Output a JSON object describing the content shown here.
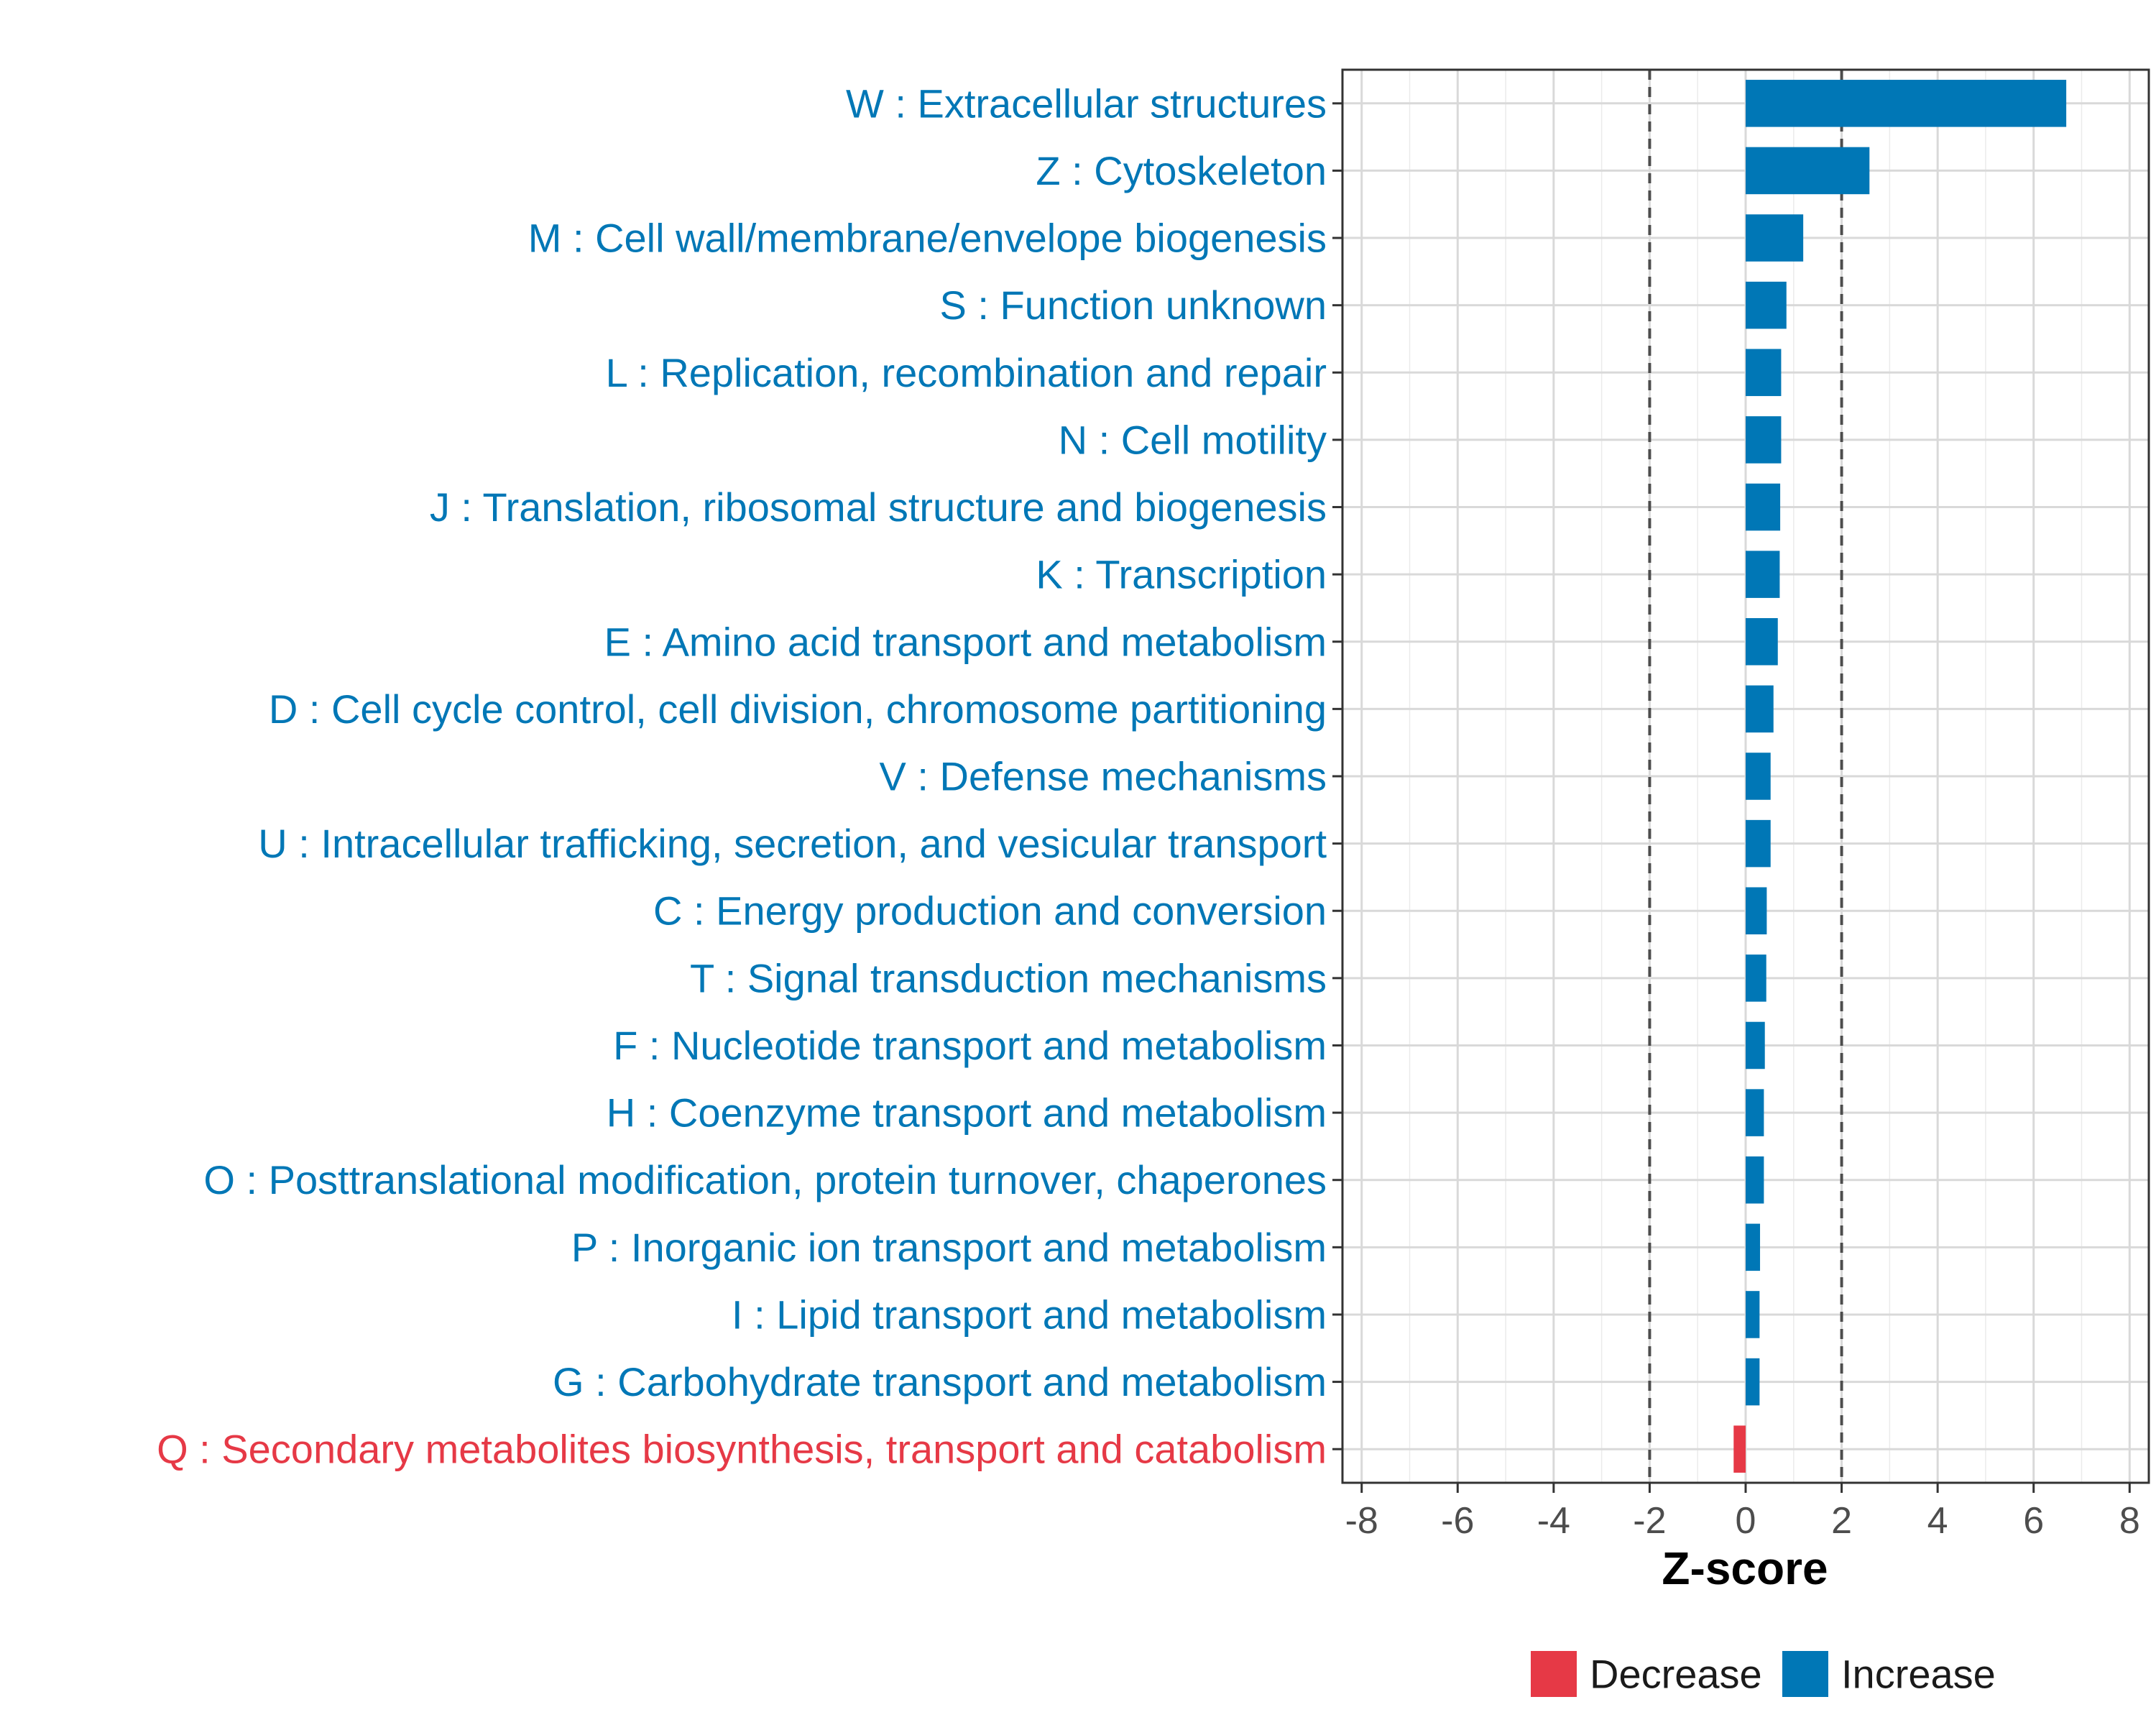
{
  "chart_data": {
    "type": "bar",
    "orientation": "horizontal",
    "xlabel": "Z-score",
    "ylabel": "",
    "xlim": [
      -8.4,
      8.4
    ],
    "xticks": [
      -8,
      -6,
      -4,
      -2,
      0,
      2,
      4,
      6,
      8
    ],
    "xtick_labels": [
      "-8",
      "-6",
      "-4",
      "-2",
      "0",
      "2",
      "4",
      "6",
      "8"
    ],
    "reference_lines": [
      -2,
      2
    ],
    "grid": true,
    "legend_position": "bottom",
    "colors": {
      "Decrease": "#e63946",
      "Increase": "#0077b6"
    },
    "legend": [
      {
        "label": "Decrease",
        "color": "#e63946"
      },
      {
        "label": "Increase",
        "color": "#0077b6"
      }
    ],
    "categories": [
      "W : Extracellular structures",
      "Z : Cytoskeleton",
      "M : Cell wall/membrane/envelope biogenesis",
      "S : Function unknown",
      "L : Replication, recombination and repair",
      "N : Cell motility",
      "J : Translation, ribosomal structure and biogenesis",
      "K : Transcription",
      "E : Amino acid transport and metabolism",
      "D : Cell cycle control, cell division, chromosome partitioning",
      "V : Defense mechanisms",
      "U : Intracellular trafficking, secretion, and vesicular transport",
      "C : Energy production and conversion",
      "T : Signal transduction mechanisms",
      "F : Nucleotide transport and metabolism",
      "H : Coenzyme transport and metabolism",
      "O : Posttranslational modification, protein turnover, chaperones",
      "P : Inorganic ion transport and metabolism",
      "I : Lipid transport and metabolism",
      "G : Carbohydrate transport and metabolism",
      "Q : Secondary metabolites biosynthesis, transport and catabolism"
    ],
    "values": [
      6.68,
      2.58,
      1.2,
      0.85,
      0.74,
      0.74,
      0.72,
      0.71,
      0.67,
      0.58,
      0.52,
      0.52,
      0.44,
      0.43,
      0.4,
      0.38,
      0.38,
      0.3,
      0.29,
      0.29,
      -0.25
    ],
    "direction": [
      "Increase",
      "Increase",
      "Increase",
      "Increase",
      "Increase",
      "Increase",
      "Increase",
      "Increase",
      "Increase",
      "Increase",
      "Increase",
      "Increase",
      "Increase",
      "Increase",
      "Increase",
      "Increase",
      "Increase",
      "Increase",
      "Increase",
      "Increase",
      "Decrease"
    ]
  }
}
